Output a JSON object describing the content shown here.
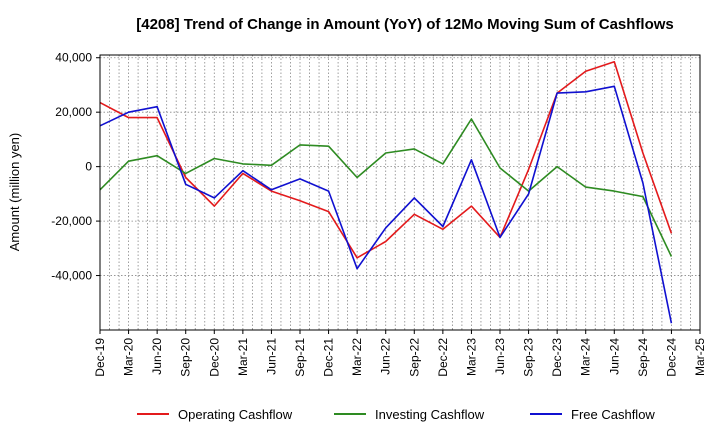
{
  "chart_data": {
    "type": "line",
    "title": "[4208]  Trend of Change in Amount (YoY) of 12Mo Moving Sum of Cashflows",
    "xlabel": "",
    "ylabel": "Amount (million yen)",
    "ylim": [
      -60000,
      41000
    ],
    "yticks": [
      40000,
      20000,
      0,
      -20000,
      -40000
    ],
    "ytick_labels": [
      "40,000",
      "20,000",
      "0",
      "-20,000",
      "-40,000"
    ],
    "categories": [
      "Dec-19",
      "Mar-20",
      "Jun-20",
      "Sep-20",
      "Dec-20",
      "Mar-21",
      "Jun-21",
      "Sep-21",
      "Dec-21",
      "Mar-22",
      "Jun-22",
      "Sep-22",
      "Dec-22",
      "Mar-23",
      "Jun-23",
      "Sep-23",
      "Dec-23",
      "Mar-24",
      "Jun-24",
      "Sep-24",
      "Dec-24",
      "Mar-25"
    ],
    "grid": true,
    "legend_position": "bottom",
    "series": [
      {
        "name": "Operating Cashflow",
        "color": "#e31a1c",
        "values": [
          23500,
          18000,
          18000,
          -4000,
          -14500,
          -2500,
          -9000,
          -12500,
          -16500,
          -33500,
          -27500,
          -17500,
          -23000,
          -14500,
          -26000,
          -1000,
          27000,
          35000,
          38500,
          5000,
          -24500,
          null
        ]
      },
      {
        "name": "Investing Cashflow",
        "color": "#2e8b22",
        "values": [
          -8500,
          2000,
          4000,
          -2500,
          3000,
          1000,
          500,
          8000,
          7500,
          -4000,
          5000,
          6500,
          1000,
          17500,
          -500,
          -9000,
          0,
          -7500,
          -9000,
          -11000,
          -33000,
          null
        ]
      },
      {
        "name": "Free Cashflow",
        "color": "#1010d0",
        "values": [
          15000,
          20000,
          22000,
          -6500,
          -11500,
          -1500,
          -8500,
          -4500,
          -9000,
          -37500,
          -22500,
          -11500,
          -22000,
          2500,
          -26000,
          -10000,
          27000,
          27500,
          29500,
          -6000,
          -57500,
          null
        ]
      }
    ]
  }
}
